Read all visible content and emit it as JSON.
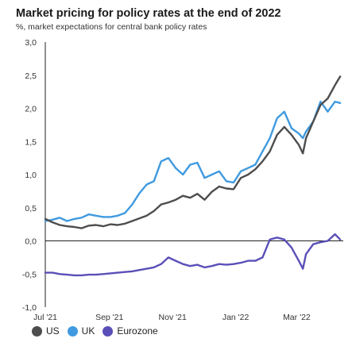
{
  "header": {
    "title": "Market pricing for policy rates at the end of 2022",
    "subtitle": "%, market expectations for central bank policy rates"
  },
  "chart_data": {
    "type": "line",
    "title": "Market pricing for policy rates at the end of 2022",
    "subtitle": "%, market expectations for central bank policy rates",
    "xlabel": "",
    "ylabel": "",
    "ylim": [
      -1.0,
      3.0
    ],
    "y_ticks": [
      "3,0",
      "2,5",
      "2,0",
      "1,5",
      "1,0",
      "0,5",
      "0,0",
      "-0,5",
      "-1,0"
    ],
    "y_tick_values": [
      3.0,
      2.5,
      2.0,
      1.5,
      1.0,
      0.5,
      0.0,
      -0.5,
      -1.0
    ],
    "x_ticks": [
      "Jul '21",
      "Sep '21",
      "Nov '21",
      "Jan '22",
      "Mar '22"
    ],
    "x_range": [
      "2021-07-01",
      "2022-04-15"
    ],
    "x_tick_dates": [
      "2021-07-01",
      "2021-09-01",
      "2021-11-01",
      "2022-01-01",
      "2022-03-01"
    ],
    "grid": false,
    "legend_position": "bottom-left",
    "series": [
      {
        "name": "US",
        "color": "#4d4d4d",
        "points": [
          [
            "2021-07-01",
            0.33
          ],
          [
            "2021-07-08",
            0.28
          ],
          [
            "2021-07-15",
            0.24
          ],
          [
            "2021-07-22",
            0.22
          ],
          [
            "2021-07-29",
            0.21
          ],
          [
            "2021-08-05",
            0.19
          ],
          [
            "2021-08-12",
            0.23
          ],
          [
            "2021-08-19",
            0.24
          ],
          [
            "2021-08-26",
            0.22
          ],
          [
            "2021-09-02",
            0.25
          ],
          [
            "2021-09-09",
            0.24
          ],
          [
            "2021-09-16",
            0.26
          ],
          [
            "2021-09-23",
            0.3
          ],
          [
            "2021-09-30",
            0.34
          ],
          [
            "2021-10-07",
            0.38
          ],
          [
            "2021-10-14",
            0.45
          ],
          [
            "2021-10-21",
            0.55
          ],
          [
            "2021-10-28",
            0.58
          ],
          [
            "2021-11-04",
            0.62
          ],
          [
            "2021-11-11",
            0.68
          ],
          [
            "2021-11-18",
            0.65
          ],
          [
            "2021-11-25",
            0.71
          ],
          [
            "2021-12-02",
            0.62
          ],
          [
            "2021-12-09",
            0.74
          ],
          [
            "2021-12-16",
            0.82
          ],
          [
            "2021-12-23",
            0.79
          ],
          [
            "2021-12-30",
            0.78
          ],
          [
            "2022-01-06",
            0.95
          ],
          [
            "2022-01-13",
            1.0
          ],
          [
            "2022-01-20",
            1.08
          ],
          [
            "2022-01-27",
            1.2
          ],
          [
            "2022-02-03",
            1.35
          ],
          [
            "2022-02-10",
            1.6
          ],
          [
            "2022-02-17",
            1.72
          ],
          [
            "2022-02-24",
            1.6
          ],
          [
            "2022-03-03",
            1.45
          ],
          [
            "2022-03-07",
            1.32
          ],
          [
            "2022-03-10",
            1.55
          ],
          [
            "2022-03-17",
            1.8
          ],
          [
            "2022-03-24",
            2.05
          ],
          [
            "2022-03-31",
            2.15
          ],
          [
            "2022-04-07",
            2.35
          ],
          [
            "2022-04-12",
            2.48
          ]
        ]
      },
      {
        "name": "UK",
        "color": "#3f9ae0",
        "points": [
          [
            "2021-07-01",
            0.3
          ],
          [
            "2021-07-08",
            0.32
          ],
          [
            "2021-07-15",
            0.35
          ],
          [
            "2021-07-22",
            0.3
          ],
          [
            "2021-07-29",
            0.33
          ],
          [
            "2021-08-05",
            0.35
          ],
          [
            "2021-08-12",
            0.4
          ],
          [
            "2021-08-19",
            0.38
          ],
          [
            "2021-08-26",
            0.36
          ],
          [
            "2021-09-02",
            0.36
          ],
          [
            "2021-09-09",
            0.38
          ],
          [
            "2021-09-16",
            0.42
          ],
          [
            "2021-09-23",
            0.55
          ],
          [
            "2021-09-30",
            0.72
          ],
          [
            "2021-10-07",
            0.85
          ],
          [
            "2021-10-14",
            0.9
          ],
          [
            "2021-10-21",
            1.2
          ],
          [
            "2021-10-28",
            1.25
          ],
          [
            "2021-11-04",
            1.1
          ],
          [
            "2021-11-11",
            1.0
          ],
          [
            "2021-11-18",
            1.15
          ],
          [
            "2021-11-25",
            1.18
          ],
          [
            "2021-12-02",
            0.95
          ],
          [
            "2021-12-09",
            1.0
          ],
          [
            "2021-12-16",
            1.05
          ],
          [
            "2021-12-23",
            0.9
          ],
          [
            "2021-12-30",
            0.88
          ],
          [
            "2022-01-06",
            1.05
          ],
          [
            "2022-01-13",
            1.1
          ],
          [
            "2022-01-20",
            1.15
          ],
          [
            "2022-01-27",
            1.35
          ],
          [
            "2022-02-03",
            1.55
          ],
          [
            "2022-02-10",
            1.85
          ],
          [
            "2022-02-17",
            1.95
          ],
          [
            "2022-02-24",
            1.7
          ],
          [
            "2022-03-03",
            1.62
          ],
          [
            "2022-03-07",
            1.55
          ],
          [
            "2022-03-10",
            1.65
          ],
          [
            "2022-03-17",
            1.8
          ],
          [
            "2022-03-24",
            2.1
          ],
          [
            "2022-03-31",
            1.95
          ],
          [
            "2022-04-07",
            2.1
          ],
          [
            "2022-04-12",
            2.08
          ]
        ]
      },
      {
        "name": "Eurozone",
        "color": "#5a4fb8",
        "points": [
          [
            "2021-07-01",
            -0.48
          ],
          [
            "2021-07-08",
            -0.48
          ],
          [
            "2021-07-15",
            -0.5
          ],
          [
            "2021-07-22",
            -0.51
          ],
          [
            "2021-07-29",
            -0.52
          ],
          [
            "2021-08-05",
            -0.52
          ],
          [
            "2021-08-12",
            -0.51
          ],
          [
            "2021-08-19",
            -0.51
          ],
          [
            "2021-08-26",
            -0.5
          ],
          [
            "2021-09-02",
            -0.49
          ],
          [
            "2021-09-09",
            -0.48
          ],
          [
            "2021-09-16",
            -0.47
          ],
          [
            "2021-09-23",
            -0.46
          ],
          [
            "2021-09-30",
            -0.44
          ],
          [
            "2021-10-07",
            -0.42
          ],
          [
            "2021-10-14",
            -0.4
          ],
          [
            "2021-10-21",
            -0.35
          ],
          [
            "2021-10-28",
            -0.25
          ],
          [
            "2021-11-04",
            -0.3
          ],
          [
            "2021-11-11",
            -0.35
          ],
          [
            "2021-11-18",
            -0.38
          ],
          [
            "2021-11-25",
            -0.36
          ],
          [
            "2021-12-02",
            -0.4
          ],
          [
            "2021-12-09",
            -0.38
          ],
          [
            "2021-12-16",
            -0.35
          ],
          [
            "2021-12-23",
            -0.36
          ],
          [
            "2021-12-30",
            -0.35
          ],
          [
            "2022-01-06",
            -0.33
          ],
          [
            "2022-01-13",
            -0.3
          ],
          [
            "2022-01-20",
            -0.3
          ],
          [
            "2022-01-27",
            -0.25
          ],
          [
            "2022-02-03",
            0.02
          ],
          [
            "2022-02-10",
            0.05
          ],
          [
            "2022-02-17",
            0.02
          ],
          [
            "2022-02-24",
            -0.1
          ],
          [
            "2022-03-03",
            -0.3
          ],
          [
            "2022-03-07",
            -0.42
          ],
          [
            "2022-03-10",
            -0.2
          ],
          [
            "2022-03-17",
            -0.05
          ],
          [
            "2022-03-24",
            -0.02
          ],
          [
            "2022-03-31",
            0.0
          ],
          [
            "2022-04-07",
            0.1
          ],
          [
            "2022-04-12",
            0.02
          ]
        ]
      }
    ]
  },
  "legend": {
    "items": [
      {
        "label": "US",
        "color": "#4d4d4d"
      },
      {
        "label": "UK",
        "color": "#3f9ae0"
      },
      {
        "label": "Eurozone",
        "color": "#5a4fb8"
      }
    ]
  }
}
